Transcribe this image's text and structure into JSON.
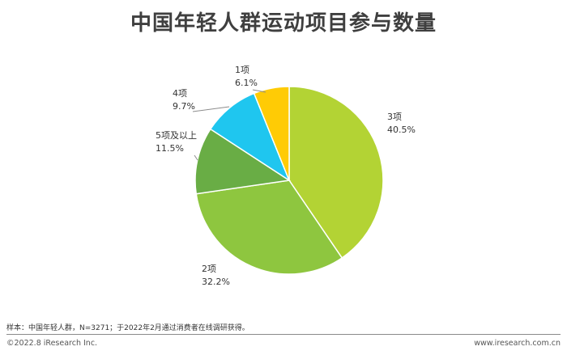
{
  "title": "中国年轻人群运动项目参与数量",
  "chart_data": {
    "type": "pie",
    "slices": [
      {
        "name": "3项",
        "value": 40.5,
        "label": "40.5%",
        "color": "#b3d334"
      },
      {
        "name": "2项",
        "value": 32.2,
        "label": "32.2%",
        "color": "#8ec63f"
      },
      {
        "name": "5项及以上",
        "value": 11.5,
        "label": "11.5%",
        "color": "#69ad45"
      },
      {
        "name": "4项",
        "value": 9.7,
        "label": "9.7%",
        "color": "#1fc6ef"
      },
      {
        "name": "1项",
        "value": 6.1,
        "label": "6.1%",
        "color": "#ffcb05"
      }
    ],
    "start_at": "12 o'clock",
    "direction": "clockwise",
    "legend": "none"
  },
  "footer": {
    "note": "样本：中国年轻人群，N=3271；于2022年2月通过消费者在线调研获得。",
    "copyright": "©2022.8 iResearch Inc.",
    "website": "www.iresearch.com.cn"
  }
}
